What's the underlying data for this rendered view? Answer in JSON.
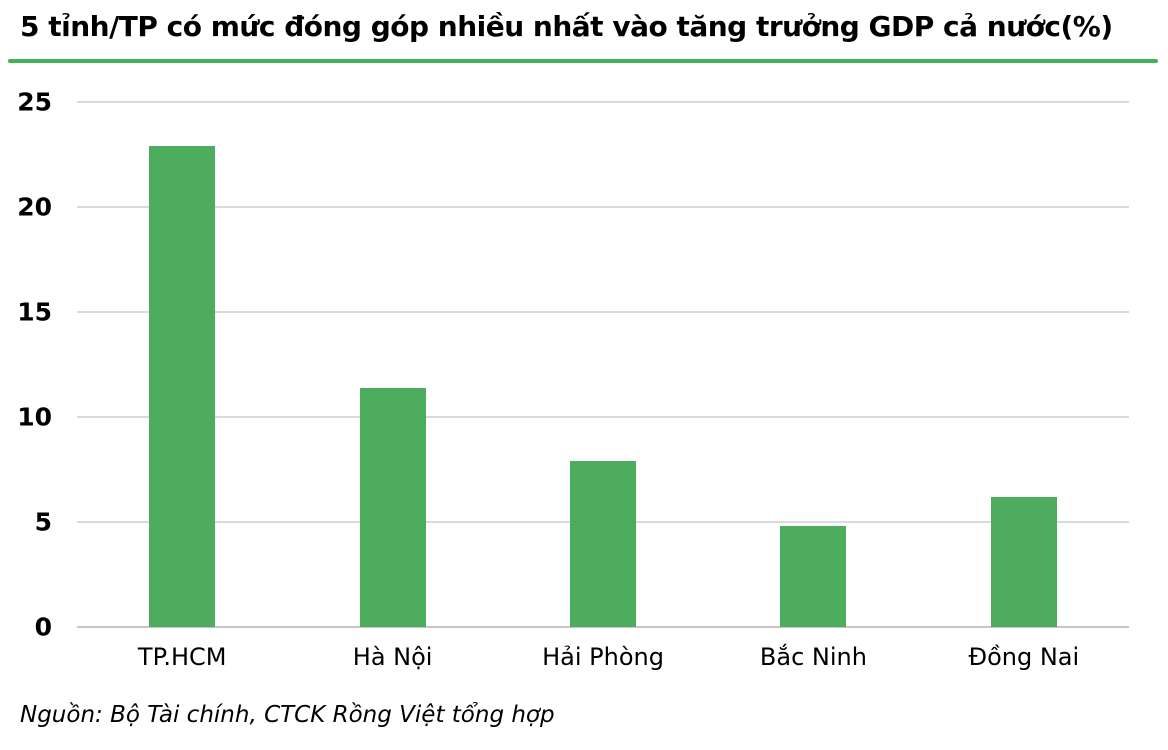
{
  "title": "5 tỉnh/TP có mức đóng góp nhiều nhất vào tăng trưởng GDP cả nước(%)",
  "source_note": "Nguồn: Bộ Tài chính, CTCK Rồng Việt tổng hợp",
  "colors": {
    "bar": "#4DAC5D",
    "accent_rule": "#45B156",
    "gridline": "#DADADA",
    "baseline": "#C6C6C6",
    "text": "#000000"
  },
  "chart_data": {
    "type": "bar",
    "title": "5 tỉnh/TP có mức đóng góp nhiều nhất vào tăng trưởng GDP cả nước(%)",
    "categories": [
      "TP.HCM",
      "Hà Nội",
      "Hải Phòng",
      "Bắc Ninh",
      "Đồng Nai"
    ],
    "values": [
      22.9,
      11.4,
      7.9,
      4.8,
      6.2
    ],
    "xlabel": "",
    "ylabel": "",
    "ylim": [
      0,
      25
    ],
    "yticks": [
      0,
      5,
      10,
      15,
      20,
      25
    ],
    "grid": true,
    "legend": false,
    "bar_color": "#4DAC5D",
    "source": "Nguồn: Bộ Tài chính, CTCK Rồng Việt tổng hợp"
  }
}
